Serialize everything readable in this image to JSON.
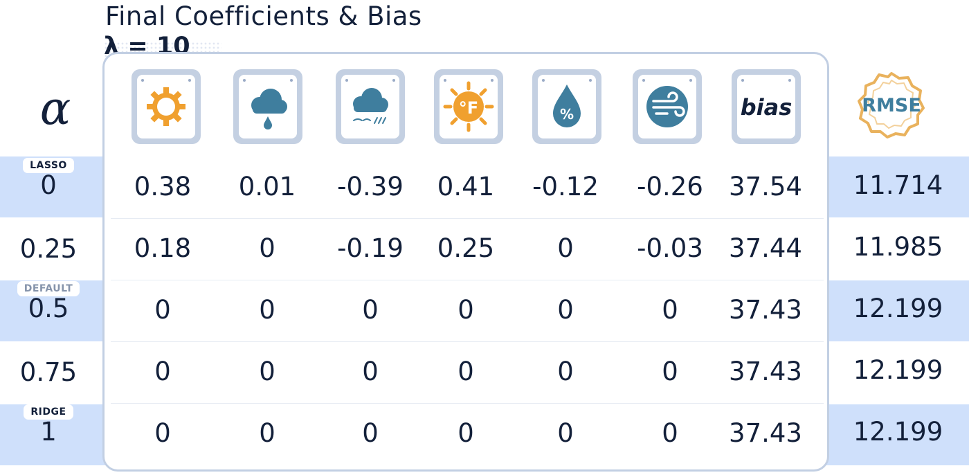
{
  "title": "Final Coefficients & Bias",
  "lambda_label": "λ = 10",
  "alpha_header": "α",
  "rmse_header": "RMSE",
  "bias_label": "bias",
  "colors": {
    "highlight": "#cfe0fb",
    "text": "#13203a",
    "icon_blue": "#3f7e9e",
    "icon_orange": "#f0a02f",
    "border": "#c2cfe3"
  },
  "chart_data": {
    "type": "table",
    "title": "Final Coefficients & Bias",
    "subtitle": "λ = 10",
    "columns": [
      "sun-icon",
      "rain-cloud-icon",
      "storm-cloud-icon",
      "temperature-icon",
      "humidity-icon",
      "wind-icon",
      "bias",
      "RMSE"
    ],
    "rows": [
      {
        "tag": "LASSO",
        "alpha": "0",
        "coefficients": [
          "0.38",
          "0.01",
          "-0.39",
          "0.41",
          "-0.12",
          "-0.26"
        ],
        "bias": "37.54",
        "rmse": "11.714",
        "highlighted": true
      },
      {
        "tag": "",
        "alpha": "0.25",
        "coefficients": [
          "0.18",
          "0",
          "-0.19",
          "0.25",
          "0",
          "-0.03"
        ],
        "bias": "37.44",
        "rmse": "11.985",
        "highlighted": false
      },
      {
        "tag": "DEFAULT",
        "alpha": "0.5",
        "coefficients": [
          "0",
          "0",
          "0",
          "0",
          "0",
          "0"
        ],
        "bias": "37.43",
        "rmse": "12.199",
        "highlighted": true
      },
      {
        "tag": "",
        "alpha": "0.75",
        "coefficients": [
          "0",
          "0",
          "0",
          "0",
          "0",
          "0"
        ],
        "bias": "37.43",
        "rmse": "12.199",
        "highlighted": false
      },
      {
        "tag": "RIDGE",
        "alpha": "1",
        "coefficients": [
          "0",
          "0",
          "0",
          "0",
          "0",
          "0"
        ],
        "bias": "37.43",
        "rmse": "12.199",
        "highlighted": true
      }
    ]
  }
}
